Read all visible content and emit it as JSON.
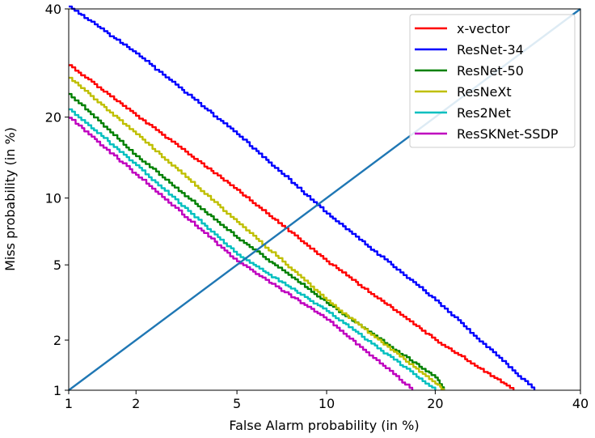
{
  "chart_data": {
    "type": "line",
    "title": "",
    "xlabel": "False Alarm probability (in %)",
    "ylabel": "Miss probability (in %)",
    "xscale": "probit",
    "yscale": "probit",
    "xlim": [
      1,
      40
    ],
    "ylim": [
      1,
      40
    ],
    "xticks": [
      1,
      2,
      5,
      10,
      20,
      40
    ],
    "yticks": [
      1,
      2,
      5,
      10,
      20,
      40
    ],
    "xtick_labels": [
      "1",
      "2",
      "5",
      "10",
      "20",
      "40"
    ],
    "ytick_labels": [
      "1",
      "2",
      "5",
      "10",
      "20",
      "40"
    ],
    "grid": false,
    "legend_position": "top-right",
    "series": [
      {
        "name": "x-vector",
        "color": "#ff0000",
        "points": [
          [
            1,
            28.8
          ],
          [
            2,
            20.2
          ],
          [
            5,
            10.8
          ],
          [
            10,
            5.2
          ],
          [
            20,
            2.0
          ],
          [
            30,
            1.0
          ]
        ]
      },
      {
        "name": "ResNet-34",
        "color": "#0000ff",
        "points": [
          [
            1,
            40.5
          ],
          [
            2,
            31.0
          ],
          [
            5,
            17.5
          ],
          [
            10,
            8.6
          ],
          [
            20,
            3.3
          ],
          [
            33,
            1.0
          ]
        ]
      },
      {
        "name": "ResNet-50",
        "color": "#008000",
        "points": [
          [
            1,
            23.7
          ],
          [
            2,
            14.6
          ],
          [
            5,
            6.7
          ],
          [
            10,
            3.2
          ],
          [
            20,
            1.2
          ],
          [
            21,
            1.0
          ]
        ]
      },
      {
        "name": "ResNeXt",
        "color": "#bfbf00",
        "points": [
          [
            1,
            26.5
          ],
          [
            2,
            17.5
          ],
          [
            5,
            7.9
          ],
          [
            10,
            3.3
          ],
          [
            20,
            1.1
          ],
          [
            21,
            1.0
          ]
        ]
      },
      {
        "name": "Res2Net",
        "color": "#00bfbf",
        "points": [
          [
            1,
            21.2
          ],
          [
            2,
            13.5
          ],
          [
            5,
            5.6
          ],
          [
            10,
            2.9
          ],
          [
            20,
            1.0
          ]
        ]
      },
      {
        "name": "ResSKNet-SSDP",
        "color": "#bf00bf",
        "points": [
          [
            1,
            19.9
          ],
          [
            2,
            12.4
          ],
          [
            5,
            5.2
          ],
          [
            10,
            2.6
          ],
          [
            17.5,
            1.0
          ]
        ]
      },
      {
        "name": "",
        "color": "#1f77b4",
        "points": [
          [
            1,
            1
          ],
          [
            40,
            40
          ]
        ]
      }
    ]
  }
}
